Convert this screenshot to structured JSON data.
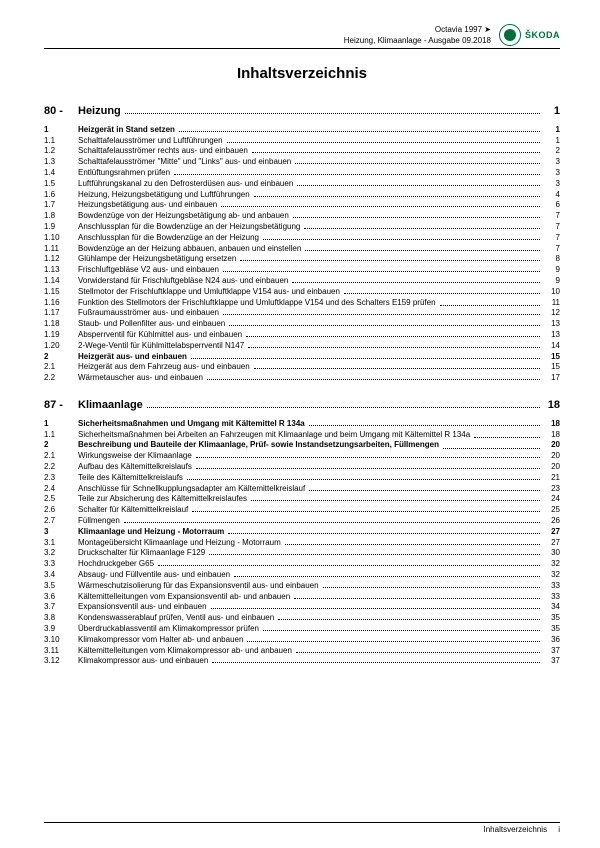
{
  "header": {
    "line1": "Octavia 1997 ➤",
    "line2": "Heizung, Klimaanlage - Ausgabe 09.2018",
    "brand": "ŠKODA"
  },
  "title": "Inhaltsverzeichnis",
  "sections": [
    {
      "num": "80 -",
      "label": "Heizung",
      "page": "1",
      "entries": [
        {
          "n": "1",
          "t": "Heizgerät in Stand setzen",
          "p": "1",
          "b": true
        },
        {
          "n": "1.1",
          "t": "Schalttafelausströmer und Luftführungen",
          "p": "1"
        },
        {
          "n": "1.2",
          "t": "Schalttafelausströmer rechts aus- und einbauen",
          "p": "2"
        },
        {
          "n": "1.3",
          "t": "Schalttafelausströmer \"Mitte\" und \"Links\" aus- und einbauen",
          "p": "3"
        },
        {
          "n": "1.4",
          "t": "Entlüftungsrahmen prüfen",
          "p": "3"
        },
        {
          "n": "1.5",
          "t": "Luftführungskanal zu den Defrosterdüsen aus- und einbauen",
          "p": "3"
        },
        {
          "n": "1.6",
          "t": "Heizung, Heizungsbetätigung und Luftführungen",
          "p": "4"
        },
        {
          "n": "1.7",
          "t": "Heizungsbetätigung aus- und einbauen",
          "p": "6"
        },
        {
          "n": "1.8",
          "t": "Bowdenzüge von der Heizungsbetätigung ab- und anbauen",
          "p": "7"
        },
        {
          "n": "1.9",
          "t": "Anschlussplan für die Bowdenzüge an der Heizungsbetätigung",
          "p": "7"
        },
        {
          "n": "1.10",
          "t": "Anschlussplan für die Bowdenzüge an der Heizung",
          "p": "7"
        },
        {
          "n": "1.11",
          "t": "Bowdenzüge an der Heizung abbauen, anbauen und einstellen",
          "p": "7"
        },
        {
          "n": "1.12",
          "t": "Glühlampe der Heizungsbetätigung ersetzen",
          "p": "8"
        },
        {
          "n": "1.13",
          "t": "Frischluftgebläse V2 aus- und einbauen",
          "p": "9"
        },
        {
          "n": "1.14",
          "t": "Vorwiderstand für Frischluftgebläse N24 aus- und einbauen",
          "p": "9"
        },
        {
          "n": "1.15",
          "t": "Stellmotor der Frischluftklappe und Umluftklappe V154 aus- und einbauen",
          "p": "10"
        },
        {
          "n": "1.16",
          "t": "Funktion des Stellmotors der Frischluftklappe und Umluftklappe V154 und des Schalters E159 prüfen",
          "p": "11",
          "multi": true
        },
        {
          "n": "1.17",
          "t": "Fußraumausströmer aus- und einbauen",
          "p": "12"
        },
        {
          "n": "1.18",
          "t": "Staub- und Pollenfilter aus- und einbauen",
          "p": "13"
        },
        {
          "n": "1.19",
          "t": "Absperrventil für Kühlmittel aus- und einbauen",
          "p": "13"
        },
        {
          "n": "1.20",
          "t": "2-Wege-Ventil für Kühlmittelabsperrventil N147",
          "p": "14"
        },
        {
          "n": "2",
          "t": "Heizgerät aus- und einbauen",
          "p": "15",
          "b": true
        },
        {
          "n": "2.1",
          "t": "Heizgerät aus dem Fahrzeug aus- und einbauen",
          "p": "15"
        },
        {
          "n": "2.2",
          "t": "Wärmetauscher aus- und einbauen",
          "p": "17"
        }
      ]
    },
    {
      "num": "87 -",
      "label": "Klimaanlage",
      "page": "18",
      "entries": [
        {
          "n": "1",
          "t": "Sicherheitsmaßnahmen und Umgang mit Kältemittel R 134a",
          "p": "18",
          "b": true
        },
        {
          "n": "1.1",
          "t": "Sicherheitsmaßnahmen bei Arbeiten an Fahrzeugen mit Klimaanlage und beim Umgang mit Kältemittel R 134a",
          "p": "18",
          "multi": true
        },
        {
          "n": "2",
          "t": "Beschreibung und Bauteile der Klimaanlage, Prüf- sowie Instandsetzungsarbeiten, Füllmengen",
          "p": "20",
          "b": true,
          "multi": true
        },
        {
          "n": "2.1",
          "t": "Wirkungsweise der Klimaanlage",
          "p": "20"
        },
        {
          "n": "2.2",
          "t": "Aufbau des Kältemittelkreislaufs",
          "p": "20"
        },
        {
          "n": "2.3",
          "t": "Teile des Kältemittelkreislaufs",
          "p": "21"
        },
        {
          "n": "2.4",
          "t": "Anschlüsse für Schnellkupplungsadapter am Kältemittelkreislauf",
          "p": "23"
        },
        {
          "n": "2.5",
          "t": "Teile zur Absicherung des Kältemittelkreislaufes",
          "p": "24"
        },
        {
          "n": "2.6",
          "t": "Schalter für Kältemittelkreislauf",
          "p": "25"
        },
        {
          "n": "2.7",
          "t": "Füllmengen",
          "p": "26"
        },
        {
          "n": "3",
          "t": "Klimaanlage und Heizung - Motorraum",
          "p": "27",
          "b": true
        },
        {
          "n": "3.1",
          "t": "Montageübersicht Klimaanlage und Heizung - Motorraum",
          "p": "27"
        },
        {
          "n": "3.2",
          "t": "Druckschalter für Klimaanlage F129",
          "p": "30"
        },
        {
          "n": "3.3",
          "t": "Hochdruckgeber G65",
          "p": "32"
        },
        {
          "n": "3.4",
          "t": "Absaug- und Füllventile aus- und einbauen",
          "p": "32"
        },
        {
          "n": "3.5",
          "t": "Wärmeschutzisolierung für das Expansionsventil aus- und einbauen",
          "p": "33"
        },
        {
          "n": "3.6",
          "t": "Kältemittelleitungen vom Expansionsventil ab- und anbauen",
          "p": "33"
        },
        {
          "n": "3.7",
          "t": "Expansionsventil aus- und einbauen",
          "p": "34"
        },
        {
          "n": "3.8",
          "t": "Kondenswasserablauf prüfen, Ventil aus- und einbauen",
          "p": "35"
        },
        {
          "n": "3.9",
          "t": "Überdruckablassventil am Klimakompressor prüfen",
          "p": "35"
        },
        {
          "n": "3.10",
          "t": "Klimakompressor vom Halter ab- und anbauen",
          "p": "36"
        },
        {
          "n": "3.11",
          "t": "Kältemittelleitungen vom Klimakompressor ab- und anbauen",
          "p": "37"
        },
        {
          "n": "3.12",
          "t": "Klimakompressor aus- und einbauen",
          "p": "37"
        }
      ]
    }
  ],
  "footer": {
    "label": "Inhaltsverzeichnis",
    "pagenum": "i"
  },
  "colors": {
    "brand_green": "#006f3b",
    "text": "#000000",
    "bg": "#ffffff"
  }
}
